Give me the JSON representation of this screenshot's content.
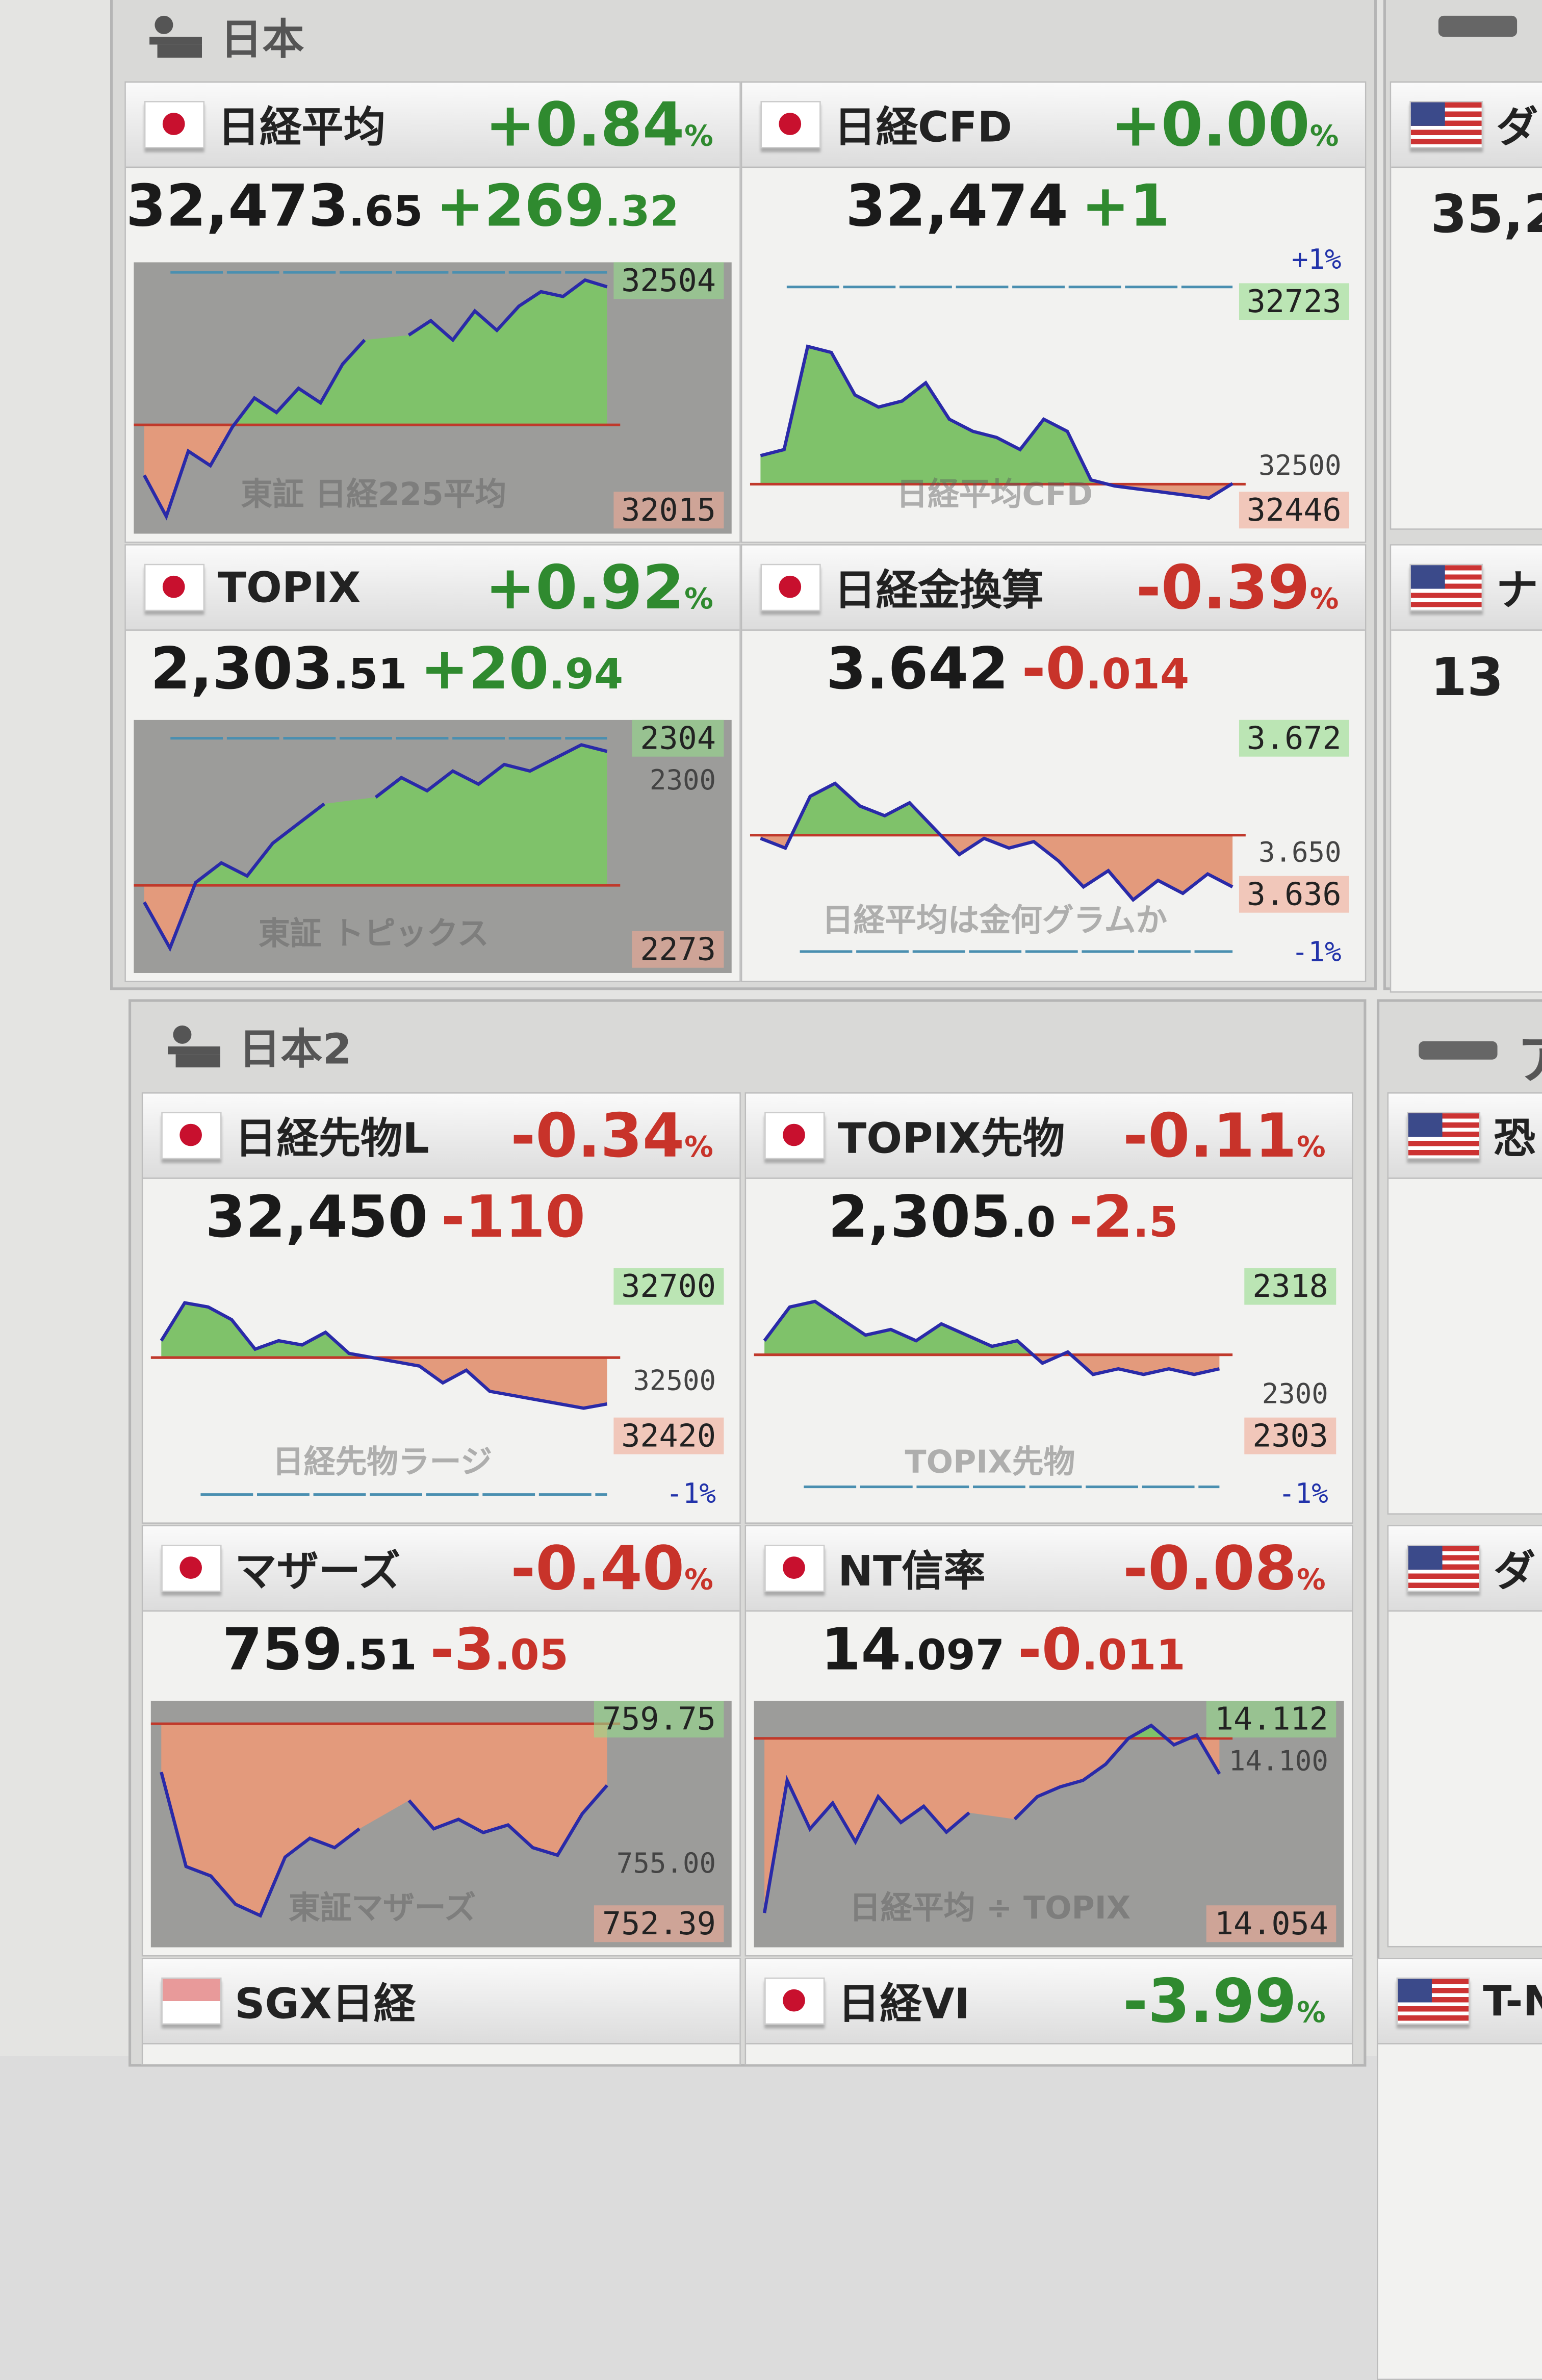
{
  "sections": [
    {
      "title": "日本",
      "icon": "exchange-building-icon"
    },
    {
      "title": "日本2",
      "icon": "exchange-building-icon"
    }
  ],
  "colors": {
    "up": "#2f8a2f",
    "down": "#c8332a",
    "line": "#2a2aa8",
    "base_line": "#c0392b",
    "fill_up": "#7fc26a",
    "fill_down": "#e39a7c",
    "plot_gray": "#9c9c9a"
  },
  "cells": [
    {
      "name": "日経平均",
      "flag": "jp",
      "pct": "+0.84",
      "dir": "up",
      "price_main": "32,473",
      "price_dec": ".65",
      "change_main": "+269",
      "change_dec": ".32",
      "chart": {
        "bg": "gray",
        "ylim": [
          31990,
          32530
        ],
        "base": 32204.33,
        "high_label": "32504",
        "low_label": "32015",
        "watermark": "東証 日経225平均",
        "pct_line_top": 32520,
        "series": [
          32100,
          32015,
          32150,
          32120,
          32200,
          32260,
          32230,
          32280,
          32250,
          32330,
          32380,
          null,
          32390,
          32420,
          32380,
          32440,
          32400,
          32450,
          32480,
          32470,
          32504,
          32490
        ]
      }
    },
    {
      "name": "日経CFD",
      "flag": "jp",
      "pct": "+0.00",
      "dir": "up",
      "price_main": "32,474",
      "price_dec": "",
      "change_main": "+1",
      "change_dec": "",
      "chart": {
        "bg": "light",
        "ylim": [
          32400,
          32830
        ],
        "base": 32473,
        "high_label": "32723",
        "low_label": "32446",
        "mid_label": "32500",
        "mid_value": 32500,
        "plus_label": "+1%",
        "pct_line_top": 32798,
        "watermark": "日経平均CFD",
        "series": [
          32520,
          32530,
          32700,
          32690,
          32620,
          32600,
          32610,
          32640,
          32580,
          32560,
          32550,
          32530,
          32580,
          32560,
          32480,
          32470,
          32465,
          32460,
          32455,
          32450,
          32474
        ]
      }
    },
    {
      "name": "TOPIX",
      "flag": "jp",
      "pct": "+0.92",
      "dir": "up",
      "price_main": "2,303",
      "price_dec": ".51",
      "change_main": "+20",
      "change_dec": ".94",
      "chart": {
        "bg": "gray",
        "ylim": [
          2270,
          2307
        ],
        "base": 2282.57,
        "high_label": "2304",
        "low_label": "2273",
        "mid_label": "2300",
        "mid_value": 2300,
        "watermark": "東証 トピックス",
        "pct_line_top": 2305,
        "series": [
          2280,
          2273,
          2283,
          2286,
          2284,
          2289,
          2292,
          2295,
          null,
          2296,
          2299,
          2297,
          2300,
          2298,
          2301,
          2300,
          2302,
          2304,
          2303
        ]
      }
    },
    {
      "name": "日経金換算",
      "flag": "jp",
      "pct": "-0.39",
      "dir": "dn",
      "price_main": "3.642",
      "price_dec": "",
      "change_main": "-0",
      "change_dec": ".014",
      "chart": {
        "bg": "light",
        "ylim": [
          3.615,
          3.69
        ],
        "base": 3.656,
        "high_label": "3.672",
        "low_label": "3.636",
        "mid_label": "3.650",
        "mid_value": 3.65,
        "minus_label": "-1%",
        "pct_line_bottom": 3.62,
        "watermark": "日経平均は金何グラムか",
        "series": [
          3.655,
          3.652,
          3.668,
          3.672,
          3.665,
          3.662,
          3.666,
          3.658,
          3.65,
          3.655,
          3.652,
          3.654,
          3.648,
          3.64,
          3.645,
          3.636,
          3.642,
          3.638,
          3.644,
          3.64
        ]
      }
    },
    {
      "name": "日経先物L",
      "flag": "jp",
      "pct": "-0.34",
      "dir": "dn",
      "price_main": "32,450",
      "price_dec": "",
      "change_main": "-110",
      "change_dec": "",
      "chart": {
        "bg": "light",
        "ylim": [
          32200,
          32760
        ],
        "base": 32560,
        "high_label": "32700",
        "low_label": "32420",
        "mid_label": "32500",
        "mid_value": 32500,
        "minus_label": "-1%",
        "pct_line_bottom": 32235,
        "watermark": "日経先物ラージ",
        "series": [
          32600,
          32690,
          32680,
          32650,
          32580,
          32600,
          32590,
          32620,
          32570,
          32560,
          32550,
          32540,
          32500,
          32530,
          32480,
          32470,
          32460,
          32450,
          32440,
          32450
        ]
      }
    },
    {
      "name": "TOPIX先物",
      "flag": "jp",
      "pct": "-0.11",
      "dir": "dn",
      "price_main": "2,305",
      "price_dec": ".0",
      "change_main": "-2",
      "change_dec": ".5",
      "chart": {
        "bg": "light",
        "ylim": [
          2280,
          2322
        ],
        "base": 2307.5,
        "high_label": "2318",
        "low_label": "2303",
        "mid_label": "2300",
        "mid_value": 2300,
        "minus_label": "-1%",
        "pct_line_bottom": 2284,
        "watermark": "TOPIX先物",
        "series": [
          2310,
          2316,
          2317,
          2314,
          2311,
          2312,
          2310,
          2313,
          2311,
          2309,
          2310,
          2306,
          2308,
          2304,
          2305,
          2304,
          2305,
          2304,
          2305
        ]
      }
    },
    {
      "name": "マザーズ",
      "flag": "jp",
      "pct": "-0.40",
      "dir": "dn",
      "price_main": "759",
      "price_dec": ".51",
      "change_main": "-3",
      "change_dec": ".05",
      "chart": {
        "bg": "gray",
        "ylim": [
          751,
          763.5
        ],
        "base": 762.56,
        "high_label": "759.75",
        "low_label": "752.39",
        "mid_label": "755.00",
        "mid_value": 755,
        "watermark": "東証マザーズ",
        "series": [
          760,
          755,
          754.5,
          753,
          752.4,
          755.5,
          756.5,
          756,
          757,
          null,
          758.5,
          757,
          757.5,
          756.8,
          757.2,
          756,
          755.6,
          757.8,
          759.3
        ]
      }
    },
    {
      "name": "NT信率",
      "flag": "jp",
      "pct": "-0.08",
      "dir": "dn",
      "price_main": "14",
      "price_dec": ".097",
      "change_main": "-0",
      "change_dec": ".011",
      "chart": {
        "bg": "gray",
        "ylim": [
          14.045,
          14.118
        ],
        "base": 14.108,
        "high_label": "14.112",
        "low_label": "14.054",
        "mid_label": "14.100",
        "mid_value": 14.1,
        "watermark": "日経平均 ÷ TOPIX",
        "series": [
          14.054,
          14.095,
          14.08,
          14.088,
          14.076,
          14.09,
          14.082,
          14.087,
          14.079,
          14.085,
          null,
          14.083,
          14.09,
          14.093,
          14.095,
          14.1,
          14.108,
          14.112,
          14.106,
          14.109,
          14.097
        ]
      }
    },
    {
      "name": "SGX日経",
      "flag": "sg",
      "pct": "",
      "dir": "up"
    },
    {
      "name": "日経VI",
      "flag": "jp",
      "pct": "-3.99",
      "dir": "up"
    }
  ],
  "right_column": {
    "section_title_partial": "ア",
    "items": [
      {
        "name": "ダ",
        "value": "35,2"
      },
      {
        "name": "ナ",
        "value": "13"
      },
      {
        "name": "恐"
      },
      {
        "name": "ダ"
      },
      {
        "name": "T-N"
      }
    ]
  }
}
